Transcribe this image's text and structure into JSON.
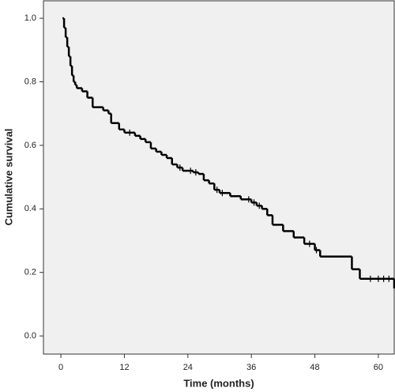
{
  "chart_data": {
    "type": "step",
    "xlabel": "Time (months)",
    "ylabel": "Cumulative survival",
    "xlim": [
      -3.3,
      63
    ],
    "ylim": [
      -0.057,
      1.055
    ],
    "xticks": [
      0,
      12,
      24,
      36,
      48,
      60
    ],
    "yticks": [
      {
        "value": 0,
        "label": "0.0"
      },
      0.2,
      0.4,
      0.6,
      0.8,
      {
        "value": 1,
        "label": "1.0"
      }
    ],
    "color": "#000000",
    "background": "#f0f0f0",
    "series": [
      {
        "name": "Survival",
        "x": [
          0.3,
          0.6,
          0.9,
          1.2,
          1.5,
          1.8,
          2.1,
          2.4,
          2.7,
          3.0,
          4.0,
          5.0,
          6.0,
          8.0,
          9.0,
          9.5,
          11.0,
          12.0,
          14.0,
          15.0,
          16.0,
          17.0,
          18.0,
          19.0,
          20.0,
          21.0,
          22.0,
          23.0,
          25.0,
          26.0,
          27.0,
          28.0,
          29.0,
          30.0,
          32.0,
          34.0,
          36.0,
          37.0,
          38.0,
          39.0,
          40.0,
          42.0,
          44.0,
          46.0,
          48.0,
          49.0,
          55.0,
          56.5,
          63.0
        ],
        "values": [
          1.0,
          0.97,
          0.94,
          0.91,
          0.88,
          0.85,
          0.82,
          0.8,
          0.79,
          0.78,
          0.77,
          0.75,
          0.72,
          0.71,
          0.7,
          0.67,
          0.65,
          0.64,
          0.63,
          0.62,
          0.61,
          0.59,
          0.58,
          0.57,
          0.56,
          0.54,
          0.53,
          0.52,
          0.515,
          0.51,
          0.49,
          0.48,
          0.46,
          0.45,
          0.44,
          0.43,
          0.42,
          0.41,
          0.4,
          0.38,
          0.35,
          0.33,
          0.31,
          0.29,
          0.27,
          0.25,
          0.21,
          0.18,
          0.15
        ]
      }
    ],
    "censored": {
      "x": [
        13,
        22.5,
        24.5,
        25.5,
        29.5,
        30.5,
        35.5,
        36.5,
        37.5,
        47,
        48.3,
        58.5,
        60,
        61,
        62
      ],
      "values": [
        0.64,
        0.53,
        0.52,
        0.515,
        0.46,
        0.45,
        0.43,
        0.42,
        0.41,
        0.29,
        0.27,
        0.18,
        0.18,
        0.18,
        0.18
      ]
    }
  }
}
